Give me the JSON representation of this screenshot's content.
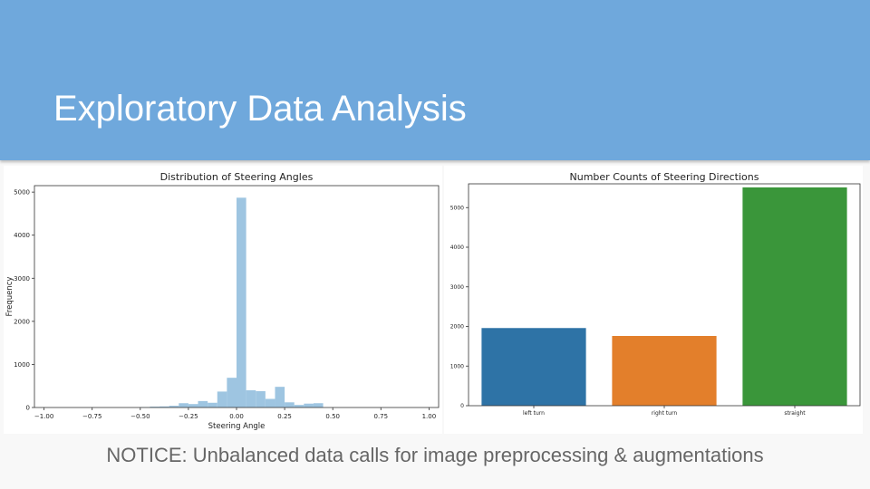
{
  "slide": {
    "title": "Exploratory Data Analysis",
    "notice": "NOTICE: Unbalanced data calls for image preprocessing & augmentations",
    "header_color": "#6fa8dc"
  },
  "chart_data": [
    {
      "type": "bar",
      "subtype": "histogram",
      "title": "Distribution of Steering Angles",
      "xlabel": "Steering Angle",
      "ylabel": "Frequency",
      "xlim": [
        -1.05,
        1.05
      ],
      "ylim": [
        0,
        5150
      ],
      "xticks": [
        -1.0,
        -0.75,
        -0.5,
        -0.25,
        0.0,
        0.25,
        0.5,
        0.75,
        1.0
      ],
      "xtick_labels": [
        "−1.00",
        "−0.75",
        "−0.50",
        "−0.25",
        "0.00",
        "0.25",
        "0.50",
        "0.75",
        "1.00"
      ],
      "yticks": [
        0,
        1000,
        2000,
        3000,
        4000,
        5000
      ],
      "ytick_labels": [
        "0",
        "1000",
        "2000",
        "3000",
        "4000",
        "5000"
      ],
      "color": "#9ec5e1",
      "bins": [
        {
          "x0": -0.5,
          "x1": -0.45,
          "value": 10
        },
        {
          "x0": -0.45,
          "x1": -0.4,
          "value": 20
        },
        {
          "x0": -0.4,
          "x1": -0.35,
          "value": 25
        },
        {
          "x0": -0.35,
          "x1": -0.3,
          "value": 40
        },
        {
          "x0": -0.3,
          "x1": -0.25,
          "value": 100
        },
        {
          "x0": -0.25,
          "x1": -0.2,
          "value": 80
        },
        {
          "x0": -0.2,
          "x1": -0.15,
          "value": 150
        },
        {
          "x0": -0.15,
          "x1": -0.1,
          "value": 110
        },
        {
          "x0": -0.1,
          "x1": -0.05,
          "value": 370
        },
        {
          "x0": -0.05,
          "x1": 0.0,
          "value": 690
        },
        {
          "x0": 0.0,
          "x1": 0.05,
          "value": 4870
        },
        {
          "x0": 0.05,
          "x1": 0.1,
          "value": 400
        },
        {
          "x0": 0.1,
          "x1": 0.15,
          "value": 380
        },
        {
          "x0": 0.15,
          "x1": 0.2,
          "value": 200
        },
        {
          "x0": 0.2,
          "x1": 0.25,
          "value": 480
        },
        {
          "x0": 0.25,
          "x1": 0.3,
          "value": 120
        },
        {
          "x0": 0.3,
          "x1": 0.35,
          "value": 60
        },
        {
          "x0": 0.35,
          "x1": 0.4,
          "value": 90
        },
        {
          "x0": 0.4,
          "x1": 0.45,
          "value": 100
        }
      ],
      "grid": false
    },
    {
      "type": "bar",
      "title": "Number Counts of Steering Directions",
      "xlabel": "",
      "ylabel": "",
      "categories": [
        "left turn",
        "right turn",
        "straight"
      ],
      "values": [
        1960,
        1760,
        5510
      ],
      "colors": [
        "#2e73a6",
        "#e37f2b",
        "#3a963a"
      ],
      "ylim": [
        0,
        5600
      ],
      "yticks": [
        0,
        1000,
        2000,
        3000,
        4000,
        5000
      ],
      "ytick_labels": [
        "0",
        "1000",
        "2000",
        "3000",
        "4000",
        "5000"
      ],
      "grid": false
    }
  ]
}
